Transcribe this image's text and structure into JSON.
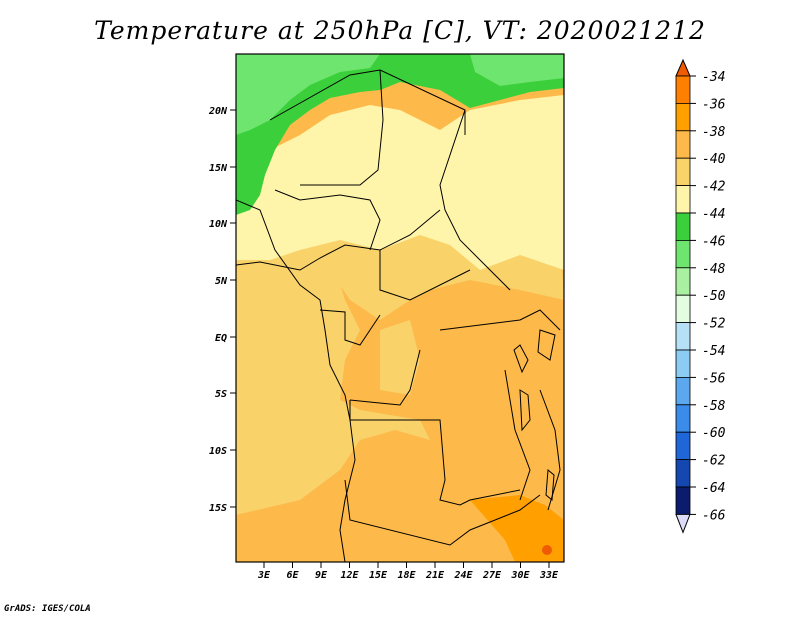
{
  "title": "Temperature at 250hPa [C], VT: 2020021212",
  "footer": "GrADS: IGES/COLA",
  "map": {
    "lat_labels": [
      "20N",
      "15N",
      "10N",
      "5N",
      "EQ",
      "5S",
      "10S",
      "15S"
    ],
    "lon_labels": [
      "3E",
      "6E",
      "9E",
      "12E",
      "15E",
      "18E",
      "21E",
      "24E",
      "27E",
      "30E",
      "33E"
    ],
    "lon_range": [
      0,
      35
    ],
    "lat_range": [
      -20,
      25
    ]
  },
  "legend": {
    "levels": [
      "-34",
      "-36",
      "-38",
      "-40",
      "-42",
      "-44",
      "-46",
      "-48",
      "-50",
      "-52",
      "-54",
      "-56",
      "-58",
      "-60",
      "-62",
      "-64",
      "-66"
    ],
    "colors": [
      "#f05a00",
      "#ff7f00",
      "#ffa000",
      "#fdb94a",
      "#f9d26a",
      "#fff5aa",
      "#3ccf3c",
      "#6ee56e",
      "#a9f0a0",
      "#e2fde0",
      "#b6e0f5",
      "#8ccbf3",
      "#5ca8ef",
      "#3a8bea",
      "#1f66d8",
      "#1447b0",
      "#0b1c6e",
      "#dcdcfa"
    ]
  }
}
